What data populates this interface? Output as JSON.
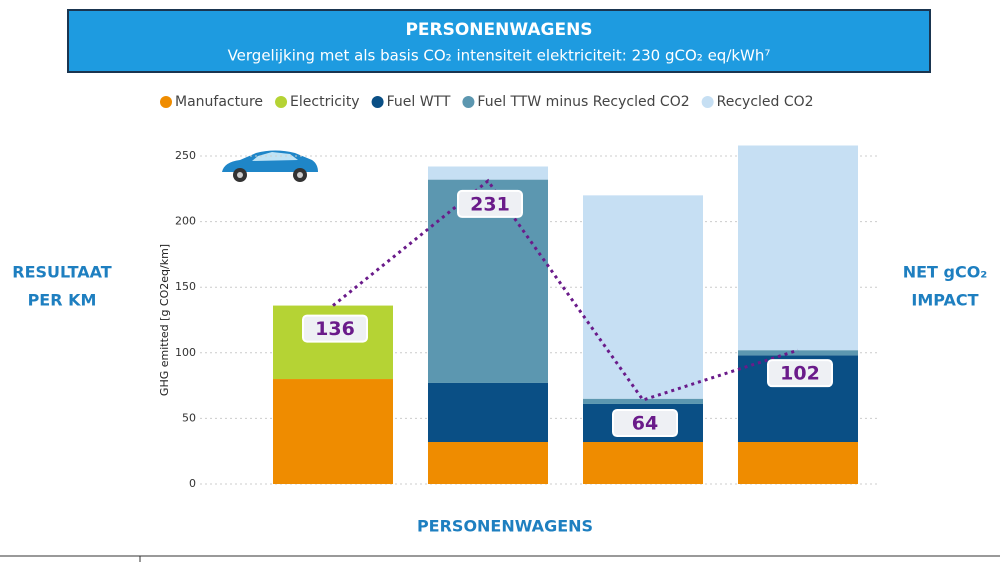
{
  "chart_data": {
    "type": "bar",
    "title": "PERSONENWAGENS",
    "subtitle": "Vergelijking met als basis CO₂ intensiteit elektriciteit: 230 gCO₂ eq/kWh⁷",
    "left_label": [
      "RESULTAAT",
      "PER KM"
    ],
    "right_label": [
      "NET gCO₂",
      "IMPACT"
    ],
    "x_label": "PERSONENWAGENS",
    "y_label": "GHG emitted [g CO2eq/km]",
    "categories": [
      null,
      null,
      null,
      null
    ],
    "series": [
      {
        "name": "Manufacture",
        "color": "#ef8c00",
        "values": [
          80,
          32,
          32,
          32
        ]
      },
      {
        "name": "Electricity",
        "color": "#b5d334",
        "values": [
          56,
          0,
          0,
          0
        ]
      },
      {
        "name": "Fuel WTT",
        "color": "#0a4f85",
        "values": [
          0,
          45,
          29,
          66
        ]
      },
      {
        "name": "Fuel TTW minus Recycled CO2",
        "color": "#5c97b0",
        "values": [
          0,
          155,
          4,
          4
        ]
      },
      {
        "name": "Recycled CO2",
        "color": "#c6dff3",
        "values": [
          0,
          10,
          155,
          156
        ]
      }
    ],
    "net_line": {
      "color": "#6a1b8a",
      "values": [
        136,
        231,
        64,
        102
      ]
    },
    "ylim": [
      0,
      250
    ],
    "yticks": [
      0,
      50,
      100,
      150,
      200,
      250
    ],
    "grid": true
  }
}
